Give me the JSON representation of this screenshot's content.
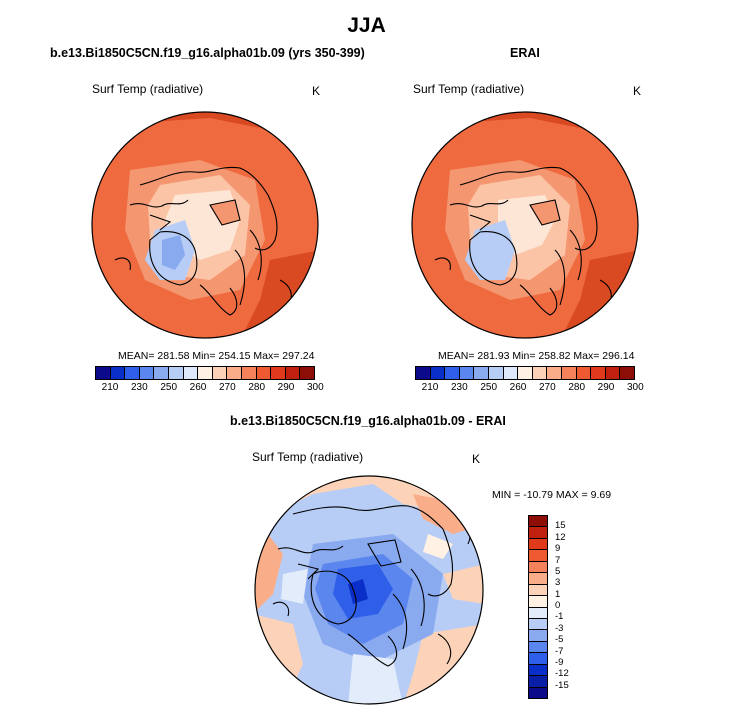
{
  "figure": {
    "title": "JJA",
    "panels": [
      {
        "subtitle": "b.e13.Bi1850C5CN.f19_g16.alpha01b.09 (yrs 350-399)",
        "variable": "Surf Temp (radiative)",
        "units": "K",
        "stats": "MEAN= 281.58  Min= 254.15  Max= 297.24"
      },
      {
        "subtitle": "ERAI",
        "variable": "Surf Temp (radiative)",
        "units": "K",
        "stats": "MEAN= 281.93  Min= 258.82  Max= 296.14"
      },
      {
        "subtitle": "b.e13.Bi1850C5CN.f19_g16.alpha01b.09 - ERAI",
        "variable": "Surf Temp (radiative)",
        "units": "K",
        "stats": "MIN = -10.79 MAX =   9.69"
      }
    ],
    "abs_colorbar": {
      "ticks": [
        "210",
        "230",
        "250",
        "260",
        "270",
        "280",
        "290",
        "300"
      ],
      "colors": [
        "#0a0a8a",
        "#0a2fc8",
        "#2f5fe8",
        "#5b86ee",
        "#8aaaf0",
        "#b7cdf5",
        "#dde8fa",
        "#fff1e4",
        "#fcd3b8",
        "#f9ad88",
        "#f5825a",
        "#ef5a33",
        "#e0391c",
        "#c0200f",
        "#8c0e06"
      ]
    },
    "diff_colorbar": {
      "ticks": [
        "15",
        "12",
        "9",
        "7",
        "5",
        "3",
        "1",
        "0",
        "-1",
        "-3",
        "-5",
        "-7",
        "-9",
        "-12",
        "-15"
      ],
      "colors": [
        "#8c0e06",
        "#c0200f",
        "#e0391c",
        "#ef5a33",
        "#f5825a",
        "#f9ad88",
        "#fcd3b8",
        "#fff1e4",
        "#e2ecfb",
        "#b7cdf5",
        "#8aaaf0",
        "#5b86ee",
        "#2f5fe8",
        "#0a2fc8",
        "#0a1fa8",
        "#0a0a8a"
      ]
    }
  }
}
